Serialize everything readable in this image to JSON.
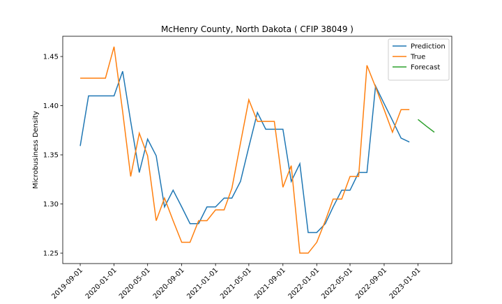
{
  "chart_data": {
    "type": "line",
    "title": "McHenry County, North Dakota ( CFIP 38049 )",
    "y_label": "Microbusiness Density",
    "x": [
      "2019-09-01",
      "2019-10-01",
      "2019-11-01",
      "2019-12-01",
      "2020-01-01",
      "2020-02-01",
      "2020-03-01",
      "2020-04-01",
      "2020-05-01",
      "2020-06-01",
      "2020-07-01",
      "2020-08-01",
      "2020-09-01",
      "2020-10-01",
      "2020-11-01",
      "2020-12-01",
      "2021-01-01",
      "2021-02-01",
      "2021-03-01",
      "2021-04-01",
      "2021-05-01",
      "2021-06-01",
      "2021-07-01",
      "2021-08-01",
      "2021-09-01",
      "2021-10-01",
      "2021-11-01",
      "2021-12-01",
      "2022-01-01",
      "2022-02-01",
      "2022-03-01",
      "2022-04-01",
      "2022-05-01",
      "2022-06-01",
      "2022-07-01",
      "2022-08-01",
      "2022-09-01",
      "2022-10-01",
      "2022-11-01",
      "2022-12-01",
      "2023-01-01",
      "2023-02-01",
      "2023-03-01"
    ],
    "series": [
      {
        "name": "Prediction",
        "color": "#1f77b4",
        "values": [
          1.359,
          1.41,
          1.41,
          1.41,
          1.41,
          1.435,
          1.384,
          1.332,
          1.366,
          1.349,
          1.297,
          1.314,
          1.297,
          1.28,
          1.28,
          1.297,
          1.297,
          1.306,
          1.306,
          1.323,
          1.358,
          1.393,
          1.376,
          1.376,
          1.376,
          1.323,
          1.341,
          1.271,
          1.271,
          1.28,
          1.297,
          1.314,
          1.314,
          1.332,
          1.332,
          1.42,
          1.402,
          1.385,
          1.367,
          1.363,
          null,
          null,
          null
        ]
      },
      {
        "name": "True",
        "color": "#ff7f0e",
        "values": [
          1.428,
          1.428,
          1.428,
          1.428,
          1.46,
          1.394,
          1.328,
          1.372,
          1.349,
          1.283,
          1.306,
          1.283,
          1.261,
          1.261,
          1.283,
          1.283,
          1.294,
          1.294,
          1.316,
          1.362,
          1.406,
          1.384,
          1.384,
          1.384,
          1.317,
          1.339,
          1.25,
          1.25,
          1.261,
          1.283,
          1.305,
          1.305,
          1.328,
          1.328,
          1.441,
          1.419,
          1.396,
          1.373,
          1.396,
          1.396,
          null,
          null,
          null
        ]
      },
      {
        "name": "Forecast",
        "color": "#2ca02c",
        "values": [
          null,
          null,
          null,
          null,
          null,
          null,
          null,
          null,
          null,
          null,
          null,
          null,
          null,
          null,
          null,
          null,
          null,
          null,
          null,
          null,
          null,
          null,
          null,
          null,
          null,
          null,
          null,
          null,
          null,
          null,
          null,
          null,
          null,
          null,
          null,
          null,
          null,
          null,
          null,
          null,
          1.386,
          1.379,
          1.373
        ]
      }
    ],
    "xlim": [
      "2019-06-30",
      "2023-05-03"
    ],
    "xticks": [
      "2019-09-01",
      "2020-01-01",
      "2020-05-01",
      "2020-09-01",
      "2021-01-01",
      "2021-05-01",
      "2021-09-01",
      "2022-01-01",
      "2022-05-01",
      "2022-09-01",
      "2023-01-01"
    ],
    "ylim": [
      1.2394,
      1.4706
    ],
    "yticks": [
      1.25,
      {
        "value": 1.3,
        "label": "1.30"
      },
      1.35,
      {
        "value": 1.4,
        "label": "1.40"
      },
      1.45
    ],
    "legend": "upper right"
  }
}
